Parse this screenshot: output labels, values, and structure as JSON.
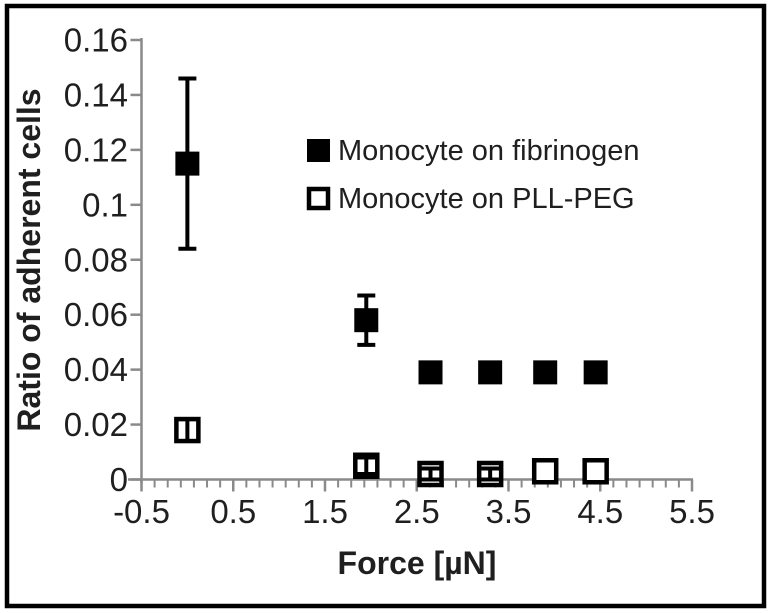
{
  "colors": {
    "background": "#ffffff",
    "frame": "#000000",
    "axis": "#8a8a8a",
    "text": "#1f1f1f",
    "marker": "#000000",
    "open_marker_fill": "#ffffff"
  },
  "chart_data": {
    "type": "scatter",
    "title": "",
    "xlabel": "Force [µN]",
    "ylabel": "Ratio of adherent cells",
    "xlim": [
      -0.5,
      5.5
    ],
    "ylim": [
      0,
      0.16
    ],
    "grid": false,
    "legend_position": "upper-middle",
    "x_ticks": [
      -0.5,
      0.5,
      1.5,
      2.5,
      3.5,
      4.5,
      5.5
    ],
    "x_tick_labels": [
      "-0.5",
      "0.5",
      "1.5",
      "2.5",
      "3.5",
      "4.5",
      "5.5"
    ],
    "x_minor_divisions_per_unit": 7,
    "y_ticks": [
      0,
      0.02,
      0.04,
      0.06,
      0.08,
      0.1,
      0.12,
      0.14,
      0.16
    ],
    "y_tick_labels": [
      "0",
      "0.02",
      "0.04",
      "0.06",
      "0.08",
      "0.1",
      "0.12",
      "0.14",
      "0.16"
    ],
    "series": [
      {
        "name": "Monocyte on fibrinogen",
        "marker": "filled-square",
        "points": [
          {
            "x": 0.0,
            "y": 0.115,
            "yerr": 0.031
          },
          {
            "x": 1.95,
            "y": 0.058,
            "yerr": 0.009
          },
          {
            "x": 2.65,
            "y": 0.039,
            "yerr": 0
          },
          {
            "x": 3.3,
            "y": 0.039,
            "yerr": 0
          },
          {
            "x": 3.9,
            "y": 0.039,
            "yerr": 0
          },
          {
            "x": 4.45,
            "y": 0.039,
            "yerr": 0
          }
        ]
      },
      {
        "name": "Monocyte on PLL-PEG",
        "marker": "open-square",
        "points": [
          {
            "x": 0.0,
            "y": 0.018,
            "yerr": 0.004
          },
          {
            "x": 1.95,
            "y": 0.005,
            "yerr": 0.003
          },
          {
            "x": 2.65,
            "y": 0.002,
            "yerr": 0.002
          },
          {
            "x": 3.3,
            "y": 0.002,
            "yerr": 0.002
          },
          {
            "x": 3.9,
            "y": 0.003,
            "yerr": 0
          },
          {
            "x": 4.45,
            "y": 0.003,
            "yerr": 0
          }
        ]
      }
    ],
    "legend": [
      {
        "label": "Monocyte on fibrinogen",
        "marker": "filled-square"
      },
      {
        "label": "Monocyte on PLL-PEG",
        "marker": "open-square"
      }
    ]
  }
}
